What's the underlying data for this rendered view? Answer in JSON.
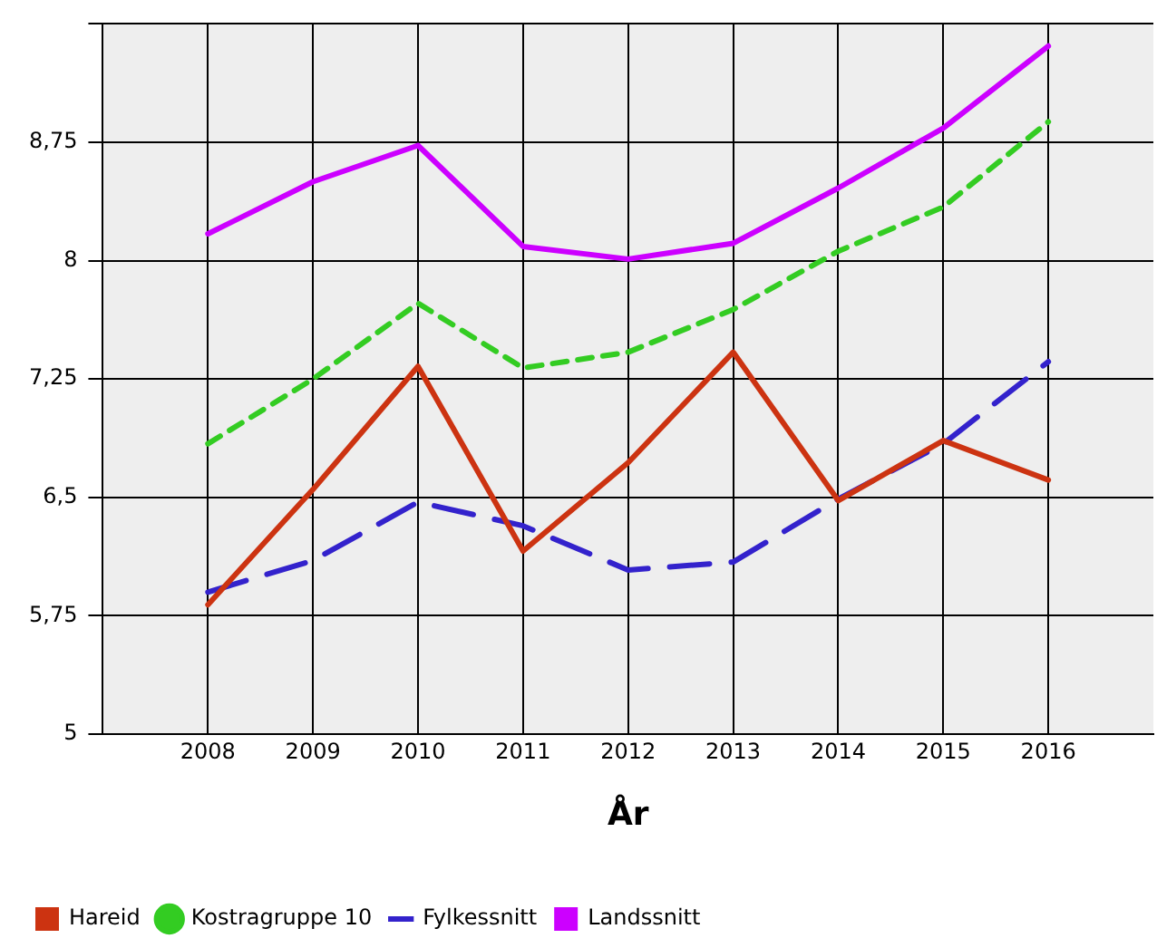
{
  "chart_data": {
    "type": "line",
    "xlabel": "År",
    "x": [
      2008,
      2009,
      2010,
      2011,
      2012,
      2013,
      2014,
      2015,
      2016
    ],
    "xlim": [
      2007,
      2017
    ],
    "xticks": [
      2008,
      2009,
      2010,
      2011,
      2012,
      2013,
      2014,
      2015,
      2016
    ],
    "ylim": [
      5,
      9.5
    ],
    "yticks": [
      5,
      {
        "value": 5.75,
        "label": "5,75"
      },
      {
        "value": 6.5,
        "label": "6,5"
      },
      {
        "value": 7.25,
        "label": "7,25"
      },
      8,
      {
        "value": 8.75,
        "label": "8,75"
      },
      {
        "value": 9.5,
        "label": null
      }
    ],
    "grid": true,
    "legend": "bottom left",
    "marker": "none",
    "series": [
      {
        "name": "Hareid",
        "color": "#cc3311",
        "line_style": "solid",
        "values": [
          5.82,
          6.55,
          7.33,
          6.16,
          6.72,
          7.42,
          6.48,
          6.86,
          6.61
        ]
      },
      {
        "name": "Kostragruppe 10",
        "color": "#33cc22",
        "line_style": "dotted",
        "values": [
          6.84,
          7.25,
          7.73,
          7.32,
          7.42,
          7.69,
          8.06,
          8.34,
          8.88
        ]
      },
      {
        "name": "Fylkessnitt",
        "color": "#3322cc",
        "line_style": "dashed",
        "values": [
          5.9,
          6.1,
          6.47,
          6.32,
          6.04,
          6.09,
          6.49,
          6.84,
          7.36
        ]
      },
      {
        "name": "Landssnitt",
        "color": "#cc00ff",
        "line_style": "solid",
        "values": [
          8.17,
          8.5,
          8.73,
          8.09,
          8.01,
          8.11,
          8.46,
          8.84,
          9.36
        ]
      }
    ]
  }
}
